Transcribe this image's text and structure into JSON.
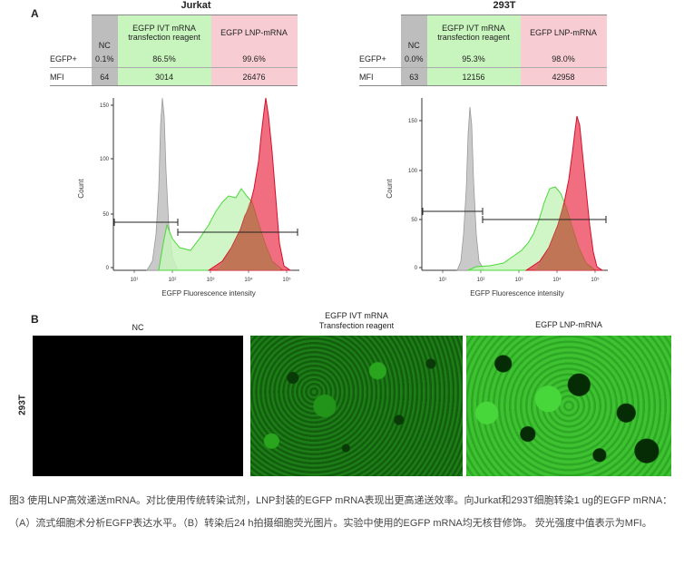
{
  "panel_a": {
    "letter": "A",
    "jurkat": {
      "title": "Jurkat",
      "headers": [
        "NC",
        "EGFP IVT mRNA transfection reagent",
        "EGFP LNP-mRNA"
      ],
      "header_ivt_line1": "EGFP IVT mRNA",
      "header_ivt_line2": "transfection reagent",
      "row_labels": [
        "EGFP+",
        "MFI"
      ],
      "egfp": [
        "0.1%",
        "86.5%",
        "99.6%"
      ],
      "mfi": [
        "64",
        "3014",
        "26476"
      ],
      "y_ticks": [
        "0",
        "50",
        "100",
        "150"
      ],
      "x_ticks": [
        "10¹",
        "10²",
        "10³",
        "10⁴",
        "10⁵"
      ],
      "ylabel": "Count",
      "xlabel": "EGFP Fluorescence intensity"
    },
    "t293": {
      "title": "293T",
      "headers": [
        "NC",
        "EGFP IVT mRNA transfection reagent",
        "EGFP LNP-mRNA"
      ],
      "header_ivt_line1": "EGFP IVT mRNA",
      "header_ivt_line2": "transfection reagent",
      "row_labels": [
        "EGFP+",
        "MFI"
      ],
      "egfp": [
        "0.0%",
        "95.3%",
        "98.0%"
      ],
      "mfi": [
        "63",
        "12156",
        "42958"
      ],
      "y_ticks": [
        "0",
        "50",
        "100",
        "150"
      ],
      "x_ticks": [
        "10¹",
        "10²",
        "10³",
        "10⁴",
        "10⁵"
      ],
      "ylabel": "Count",
      "xlabel": "EGFP Fluorescence intensity"
    }
  },
  "panel_b": {
    "letter": "B",
    "row_label": "293T",
    "labels": {
      "nc": "NC",
      "ivt_line1": "EGFP IVT mRNA",
      "ivt_line2": "Transfection reagent",
      "lnp": "EGFP LNP-mRNA"
    }
  },
  "caption": "图3 使用LNP高效递送mRNA。对比使用传统转染试剂，LNP封装的EGFP mRNA表现出更高递送效率。向Jurkat和293T细胞转染1 ug的EGFP mRNA：（A）流式细胞术分析EGFP表达水平。（B）转染后24 h拍摄细胞荧光图片。实验中使用的EGFP mRNA均无核苷修饰。 荧光强度中值表示为MFI。",
  "colors": {
    "nc": "#bdbdbd",
    "ivt": "#c8f5bd",
    "lnp": "#f7cdd3",
    "green_line": "#4ad93a",
    "red": "#e8203a"
  }
}
